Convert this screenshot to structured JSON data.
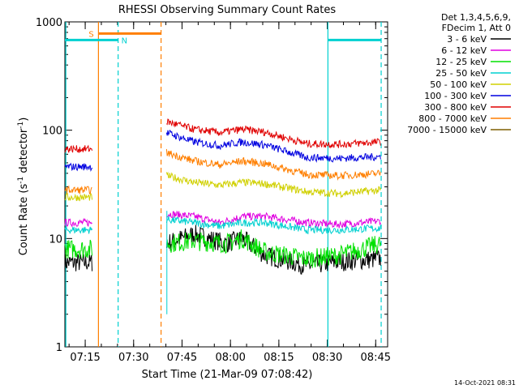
{
  "chart_data": {
    "type": "line",
    "title": "RHESSI Observing Summary Count Rates",
    "xlabel": "Start Time (21-Mar-09 07:08:42)",
    "ylabel_main": "Count Rate (s",
    "ylabel_sup1": "-1",
    "ylabel_mid": " detector",
    "ylabel_sup2": "-1",
    "ylabel_end": ")",
    "yscale": "log",
    "ylim": [
      1,
      1000
    ],
    "xlim_minutes": [
      0,
      100
    ],
    "x_ticks": [
      {
        "t": 6.3,
        "label": "07:15"
      },
      {
        "t": 21.3,
        "label": "07:30"
      },
      {
        "t": 36.3,
        "label": "07:45"
      },
      {
        "t": 51.3,
        "label": "08:00"
      },
      {
        "t": 66.3,
        "label": "08:15"
      },
      {
        "t": 81.3,
        "label": "08:30"
      },
      {
        "t": 96.3,
        "label": "08:45"
      }
    ],
    "y_ticks": [
      {
        "v": 1,
        "label": "1"
      },
      {
        "v": 10,
        "label": "10"
      },
      {
        "v": 100,
        "label": "100"
      },
      {
        "v": 1000,
        "label": "1000"
      }
    ],
    "legend_header": [
      "Det 1,3,4,5,6,9,",
      "FDecim 1, Att 0"
    ],
    "series": [
      {
        "name": "3 - 6 keV",
        "color": "#000000",
        "x": [
          0,
          8.5,
          31.5,
          40,
          50,
          55,
          62,
          75,
          85,
          98
        ],
        "y": [
          6,
          6,
          9,
          11,
          9,
          10,
          7,
          5.6,
          6.1,
          6.5
        ]
      },
      {
        "name": "6 - 12 keV",
        "color": "#e000e0",
        "x": [
          0,
          8.5,
          31.5,
          40,
          48,
          55,
          62,
          75,
          85,
          98
        ],
        "y": [
          14,
          14,
          17,
          16,
          14,
          16,
          16,
          14,
          13.5,
          14.5
        ]
      },
      {
        "name": "12 - 25 keV",
        "color": "#00e000",
        "x": [
          0,
          8.5,
          31.5,
          40,
          50,
          55,
          62,
          75,
          85,
          98
        ],
        "y": [
          8,
          8,
          9,
          9.5,
          9,
          10,
          7.5,
          6.5,
          7,
          9
        ]
      },
      {
        "name": "25 - 50 keV",
        "color": "#00d0d0",
        "x": [
          0,
          8.5,
          31.5,
          40,
          48,
          55,
          62,
          75,
          85,
          98
        ],
        "y": [
          12,
          12,
          15,
          14,
          13,
          14,
          14,
          12,
          12,
          12.5
        ]
      },
      {
        "name": "50 - 100 keV",
        "color": "#d0d000",
        "x": [
          0,
          8.5,
          31.5,
          40,
          48,
          55,
          62,
          75,
          85,
          98
        ],
        "y": [
          24,
          24,
          38,
          33,
          31,
          33,
          32,
          27,
          26,
          28
        ]
      },
      {
        "name": "100 - 300 keV",
        "color": "#0000e0",
        "x": [
          0,
          8.5,
          31.5,
          40,
          48,
          55,
          62,
          75,
          85,
          98
        ],
        "y": [
          46,
          46,
          95,
          78,
          72,
          78,
          73,
          56,
          55,
          57
        ]
      },
      {
        "name": "300 - 800 keV",
        "color": "#e00000",
        "x": [
          0,
          8.5,
          31.5,
          40,
          48,
          55,
          62,
          75,
          85,
          98
        ],
        "y": [
          67,
          67,
          120,
          102,
          95,
          102,
          96,
          75,
          74,
          78
        ]
      },
      {
        "name": "800 - 7000 keV",
        "color": "#ff7f00",
        "x": [
          0,
          8.5,
          31.5,
          40,
          48,
          55,
          62,
          75,
          85,
          98
        ],
        "y": [
          28,
          28,
          62,
          52,
          48,
          52,
          49,
          39,
          38,
          40
        ]
      },
      {
        "name": "7000 - 15000 keV",
        "color": "#7f5f00",
        "x": [],
        "y": []
      }
    ],
    "flags": {
      "saa_label": "S",
      "night_label": "N",
      "saa_bar": {
        "t": [
          10.4,
          29.8
        ],
        "level": 780,
        "color": "#ff7f00"
      },
      "night_bars": [
        {
          "t": [
            0,
            16.5
          ],
          "level": 680,
          "color": "#00d0d0"
        },
        {
          "t": [
            81.5,
            98
          ],
          "level": 680,
          "color": "#00d0d0"
        }
      ],
      "vlines": [
        {
          "t": 0.3,
          "color": "#00d0d0",
          "style": "solid"
        },
        {
          "t": 10.4,
          "color": "#ff7f00",
          "style": "solid"
        },
        {
          "t": 16.5,
          "color": "#00d0d0",
          "style": "dashed"
        },
        {
          "t": 29.8,
          "color": "#ff7f00",
          "style": "dashed"
        },
        {
          "t": 81.5,
          "color": "#00d0d0",
          "style": "solid"
        },
        {
          "t": 98.0,
          "color": "#00d0d0",
          "style": "dashed"
        }
      ]
    },
    "timestamp": "14-Oct-2021 08:31"
  }
}
